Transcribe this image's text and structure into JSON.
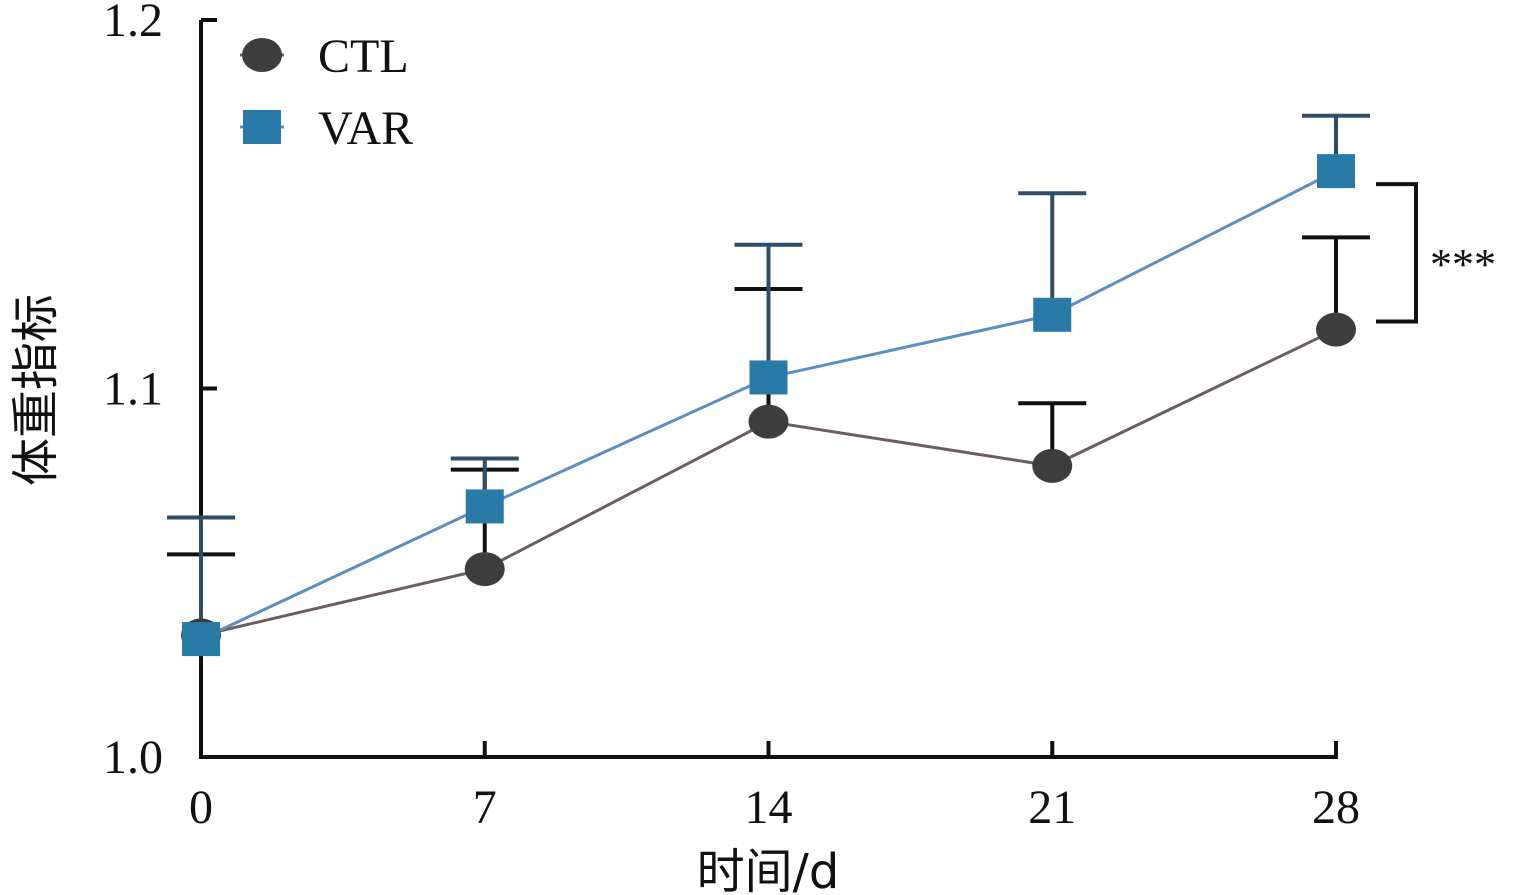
{
  "chart_data": {
    "type": "line",
    "xlabel": "时间/d",
    "ylabel": "体重指标",
    "x": [
      0,
      7,
      14,
      21,
      28
    ],
    "x_tick_labels": [
      "0",
      "7",
      "14",
      "21",
      "28"
    ],
    "ylim": [
      1.0,
      1.2
    ],
    "y_ticks": [
      1.0,
      1.1,
      1.2
    ],
    "y_tick_labels": [
      "1.0",
      "1.1",
      "1.2"
    ],
    "grid": false,
    "legend_position": "top-left",
    "series": [
      {
        "name": "CTL",
        "marker": "circle",
        "color": "#3d3d3d",
        "line_color": "#6b5f5d",
        "values": [
          1.033,
          1.051,
          1.091,
          1.079,
          1.116
        ],
        "error_upper": [
          1.055,
          1.078,
          1.127,
          1.096,
          1.141
        ]
      },
      {
        "name": "VAR",
        "marker": "square",
        "color": "#2a7aa8",
        "line_color": "#5b8fc2",
        "values": [
          1.032,
          1.068,
          1.103,
          1.12,
          1.159
        ],
        "error_upper": [
          1.065,
          1.081,
          1.139,
          1.153,
          1.174
        ]
      }
    ],
    "annotations": [
      {
        "text": "***",
        "between_series": [
          "CTL",
          "VAR"
        ],
        "at_x": 28
      }
    ]
  }
}
